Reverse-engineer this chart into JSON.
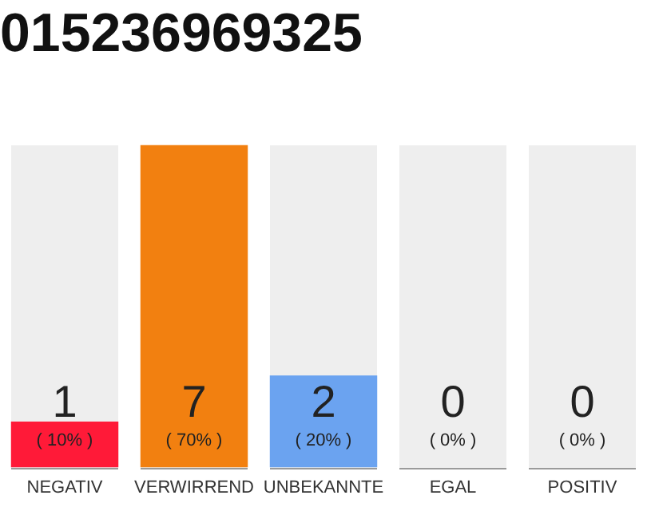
{
  "chart_data": {
    "type": "bar",
    "title": "015236969325",
    "categories": [
      "NEGATIV",
      "VERWIRREND",
      "UNBEKANNTE",
      "EGAL",
      "POSITIV"
    ],
    "values": [
      1,
      7,
      2,
      0,
      0
    ],
    "colors": [
      "#ff1a38",
      "#f28010",
      "#6ba3f0",
      "#d0d0d0",
      "#d0d0d0"
    ],
    "ylim": [
      0,
      7
    ],
    "tick_labels": "x",
    "grid": false,
    "legend": false,
    "data_labels": true,
    "annotations": [
      "( 10% )",
      "( 70% )",
      "( 20% )",
      "( 0% )",
      "( 0% )"
    ]
  }
}
